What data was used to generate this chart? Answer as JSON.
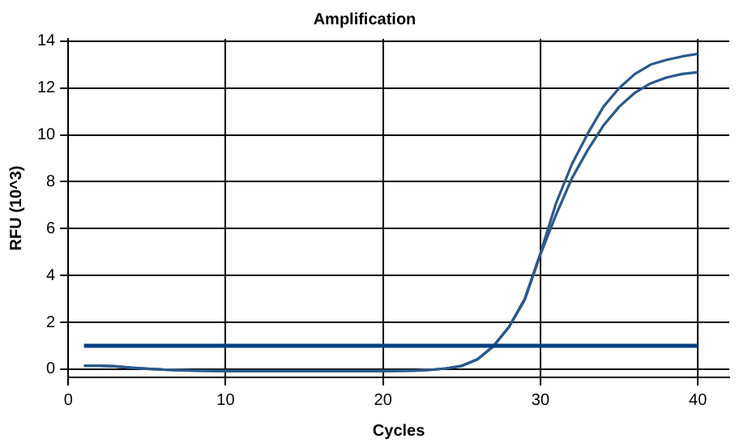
{
  "chart_data": {
    "type": "line",
    "title": "Amplification",
    "xlabel": "Cycles",
    "ylabel": "RFU (10^3)",
    "x": [
      1,
      2,
      3,
      4,
      5,
      6,
      7,
      8,
      9,
      10,
      11,
      12,
      13,
      14,
      15,
      16,
      17,
      18,
      19,
      20,
      21,
      22,
      23,
      24,
      25,
      26,
      27,
      28,
      29,
      30,
      31,
      32,
      33,
      34,
      35,
      36,
      37,
      38,
      39,
      40
    ],
    "series": [
      {
        "color": "#2b5a8a",
        "values": [
          0.15,
          0.15,
          0.12,
          0.06,
          0.02,
          -0.02,
          -0.04,
          -0.06,
          -0.07,
          -0.08,
          -0.08,
          -0.08,
          -0.08,
          -0.08,
          -0.08,
          -0.08,
          -0.08,
          -0.08,
          -0.08,
          -0.08,
          -0.07,
          -0.06,
          -0.03,
          0.03,
          0.14,
          0.42,
          0.97,
          1.8,
          3.0,
          4.95,
          7.1,
          8.75,
          10.05,
          11.2,
          12.0,
          12.6,
          13.0,
          13.2,
          13.35,
          13.46
        ]
      },
      {
        "color": "#2b5a8a",
        "values": [
          0.15,
          0.15,
          0.12,
          0.06,
          0.02,
          -0.02,
          -0.04,
          -0.06,
          -0.07,
          -0.08,
          -0.08,
          -0.08,
          -0.08,
          -0.08,
          -0.08,
          -0.08,
          -0.08,
          -0.08,
          -0.08,
          -0.08,
          -0.07,
          -0.06,
          -0.03,
          0.03,
          0.14,
          0.42,
          0.97,
          1.8,
          2.95,
          4.9,
          6.6,
          8.15,
          9.35,
          10.4,
          11.2,
          11.8,
          12.2,
          12.45,
          12.6,
          12.68
        ]
      }
    ],
    "ref_lines": [
      {
        "axis": "y",
        "value": 1,
        "color": "#003f7f"
      }
    ],
    "xlim": [
      0,
      42
    ],
    "xticks": [
      0,
      10,
      20,
      30,
      40
    ],
    "ylim": [
      -0.35,
      14.1
    ],
    "yticks": [
      0,
      2,
      4,
      6,
      8,
      10,
      12,
      14
    ],
    "grid": true,
    "line_style": "solid",
    "marker": "none",
    "legend": false
  }
}
